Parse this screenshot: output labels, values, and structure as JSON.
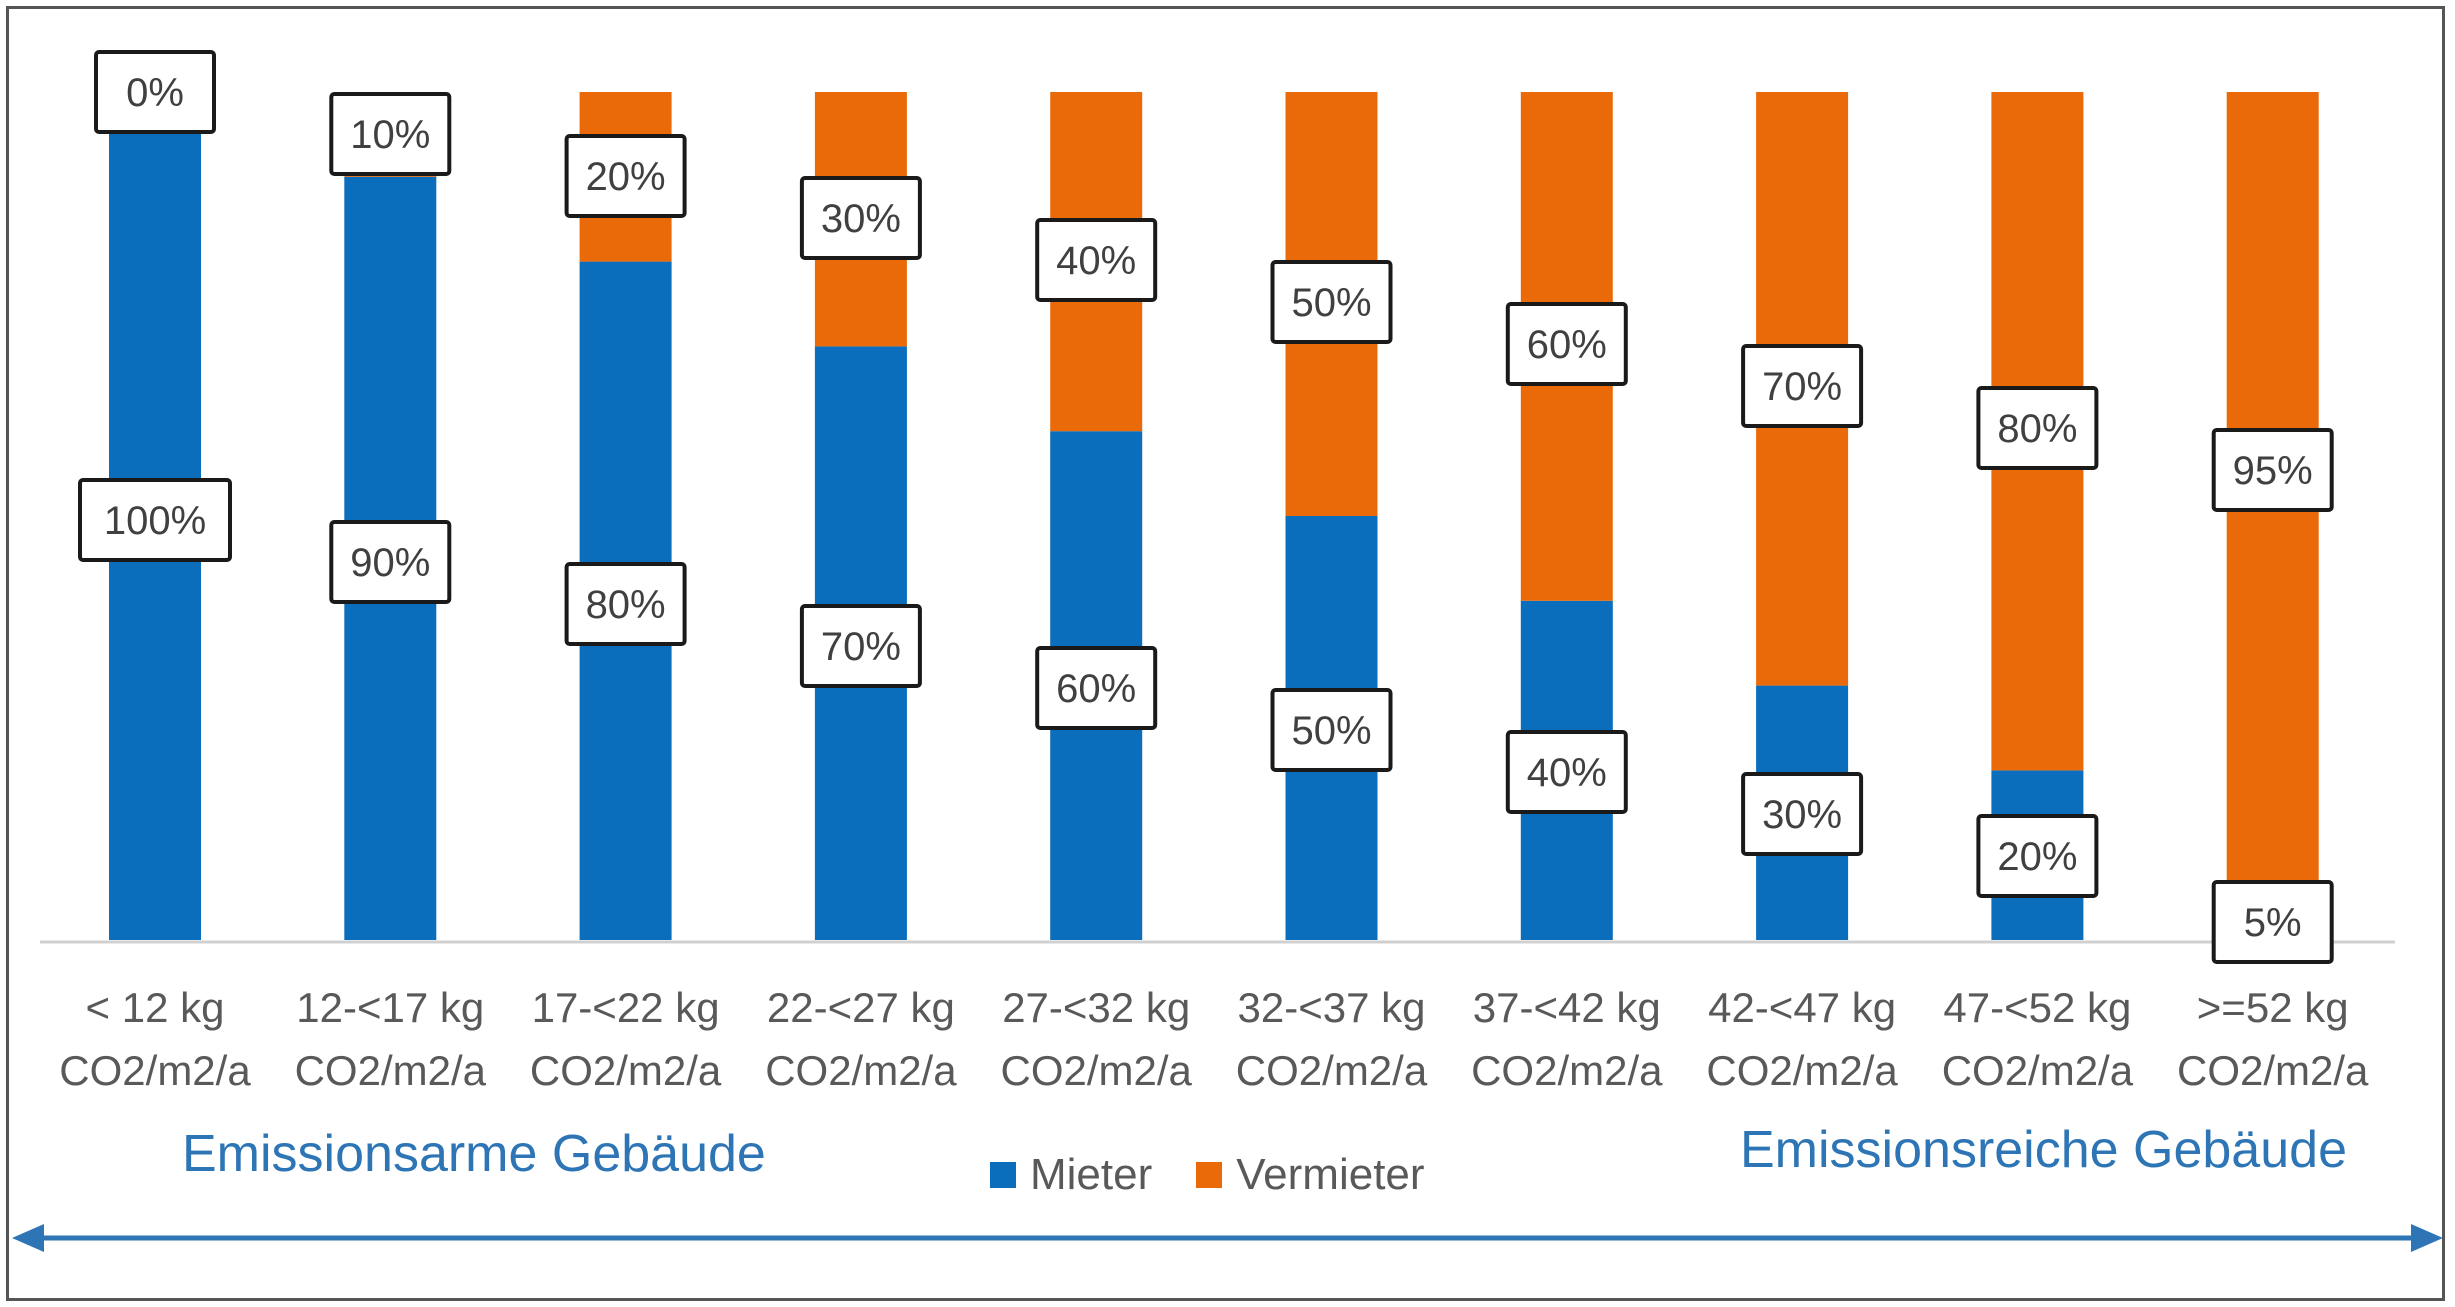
{
  "colors": {
    "mieter": "#0A6EBD",
    "vermieter": "#EA6A0A",
    "axis_text": "#595959",
    "side_label": "#2E75B6",
    "arrow": "#2E75B6"
  },
  "labels": {
    "left": "Emissionsarme Gebäude",
    "right": "Emissionsreiche Gebäude"
  },
  "legend": [
    {
      "name": "Mieter",
      "color_key": "mieter"
    },
    {
      "name": "Vermieter",
      "color_key": "vermieter"
    }
  ],
  "chart_data": {
    "type": "bar",
    "stacked": true,
    "categories": [
      [
        "< 12 kg",
        "CO2/m2/a"
      ],
      [
        "12-<17 kg",
        "CO2/m2/a"
      ],
      [
        "17-<22 kg",
        "CO2/m2/a"
      ],
      [
        "22-<27 kg",
        "CO2/m2/a"
      ],
      [
        "27-<32 kg",
        "CO2/m2/a"
      ],
      [
        "32-<37 kg",
        "CO2/m2/a"
      ],
      [
        "37-<42 kg",
        "CO2/m2/a"
      ],
      [
        "42-<47 kg",
        "CO2/m2/a"
      ],
      [
        "47-<52 kg",
        "CO2/m2/a"
      ],
      [
        ">=52 kg",
        "CO2/m2/a"
      ]
    ],
    "series": [
      {
        "name": "Mieter",
        "values": [
          100,
          90,
          80,
          70,
          60,
          50,
          40,
          30,
          20,
          5
        ],
        "labels": [
          "100%",
          "90%",
          "80%",
          "70%",
          "60%",
          "50%",
          "40%",
          "30%",
          "20%",
          "5%"
        ]
      },
      {
        "name": "Vermieter",
        "values": [
          0,
          10,
          20,
          30,
          40,
          50,
          60,
          70,
          80,
          95
        ],
        "labels": [
          "0%",
          "10%",
          "20%",
          "30%",
          "40%",
          "50%",
          "60%",
          "70%",
          "80%",
          "95%"
        ]
      }
    ],
    "ylim": [
      0,
      100
    ],
    "grid": false,
    "legend_position": "bottom-center"
  }
}
